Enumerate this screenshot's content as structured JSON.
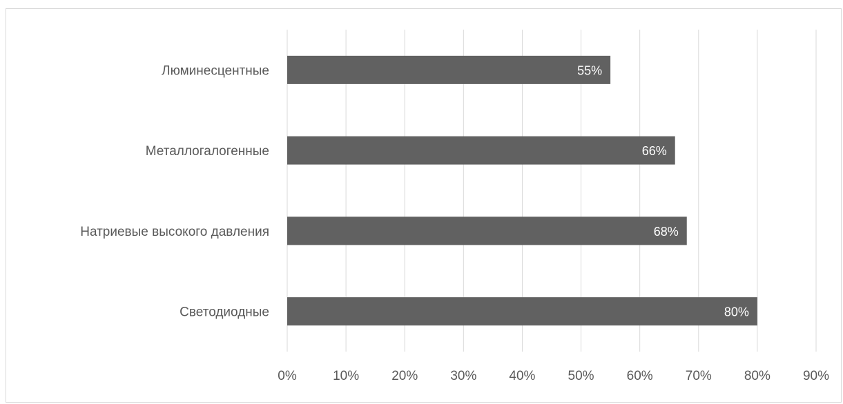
{
  "chart_data": {
    "type": "bar",
    "orientation": "horizontal",
    "title": "",
    "xlabel": "",
    "ylabel": "",
    "categories": [
      "Люминесцентные",
      "Металлогалогенные",
      "Натриевые высокого давления",
      "Светодиодные"
    ],
    "values": [
      55,
      66,
      68,
      80
    ],
    "data_labels": [
      "55%",
      "66%",
      "68%",
      "80%"
    ],
    "xlim": [
      0,
      90
    ],
    "x_ticks": [
      0,
      10,
      20,
      30,
      40,
      50,
      60,
      70,
      80,
      90
    ],
    "x_tick_labels": [
      "0%",
      "10%",
      "20%",
      "30%",
      "40%",
      "50%",
      "60%",
      "70%",
      "80%",
      "90%"
    ],
    "grid": true,
    "legend": "none",
    "colors": {
      "bar": "#616161",
      "grid": "#d9d9d9",
      "text": "#595959",
      "data_label": "#ffffff"
    }
  }
}
